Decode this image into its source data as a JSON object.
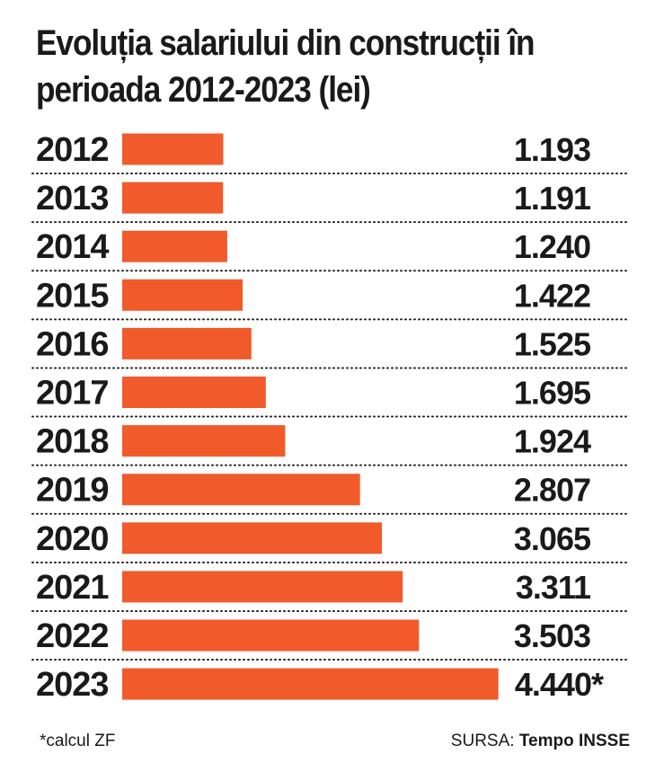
{
  "title": "Evoluția salariului din construcții în perioada 2012-2023 (lei)",
  "chart_data": {
    "type": "bar",
    "orientation": "horizontal",
    "title": "Evoluția salariului din construcții în perioada 2012-2023 (lei)",
    "categories": [
      "2012",
      "2013",
      "2014",
      "2015",
      "2016",
      "2017",
      "2018",
      "2019",
      "2020",
      "2021",
      "2022",
      "2023"
    ],
    "values": [
      1193,
      1191,
      1240,
      1422,
      1525,
      1695,
      1924,
      2807,
      3065,
      3311,
      3503,
      4440
    ],
    "value_labels": [
      "1.193",
      "1.191",
      "1.240",
      "1.422",
      "1.525",
      "1.695",
      "1.924",
      "2.807",
      "3.065",
      "3.311",
      "3.503",
      "4.440*"
    ],
    "xlabel": "",
    "ylabel": "",
    "grid": false,
    "bar_color": "#f15a2b"
  },
  "footnote": "*calcul ZF",
  "source": {
    "label": "SURSA:",
    "name": "Tempo INSSE"
  }
}
